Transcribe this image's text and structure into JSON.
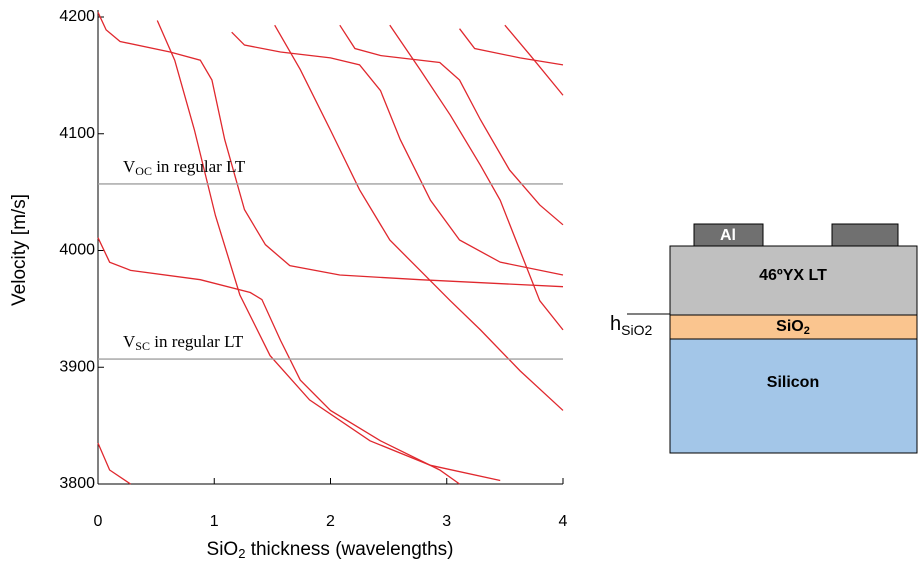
{
  "chart_data": {
    "type": "line",
    "xlabel": {
      "main": "SiO",
      "sub": "2",
      "rest": " thickness (wavelengths)"
    },
    "ylabel": "Velocity [m/s]",
    "xlim": [
      0,
      4
    ],
    "ylim": [
      3800,
      4206
    ],
    "xticks": [
      0,
      1,
      2,
      3,
      4
    ],
    "yticks": [
      3800,
      3900,
      4000,
      4100,
      4200
    ],
    "series": [
      {
        "color": "#e0282e",
        "x": [
          0,
          0.07,
          0.19,
          0.62,
          0.88,
          0.98,
          1.09,
          1.26,
          1.44,
          1.65,
          2.08,
          2.77,
          4
        ],
        "values": [
          4204,
          4189,
          4179,
          4170,
          4163,
          4146,
          4095,
          4035,
          4005,
          3987,
          3979,
          3975,
          3969
        ]
      },
      {
        "color": "#e0282e",
        "x": [
          0.51,
          0.66,
          0.83,
          1.01,
          1.22,
          1.48,
          1.82,
          2.34,
          2.86,
          3.46
        ],
        "values": [
          4197,
          4163,
          4103,
          4030,
          3962,
          3910,
          3872,
          3837,
          3816,
          3803
        ]
      },
      {
        "color": "#e0282e",
        "x": [
          0,
          0.1,
          0.28,
          0.88,
          1.31,
          1.41,
          1.57,
          1.74,
          2.0,
          2.43,
          2.94,
          3.11
        ],
        "values": [
          4011,
          3990,
          3983,
          3975,
          3964,
          3958,
          3923,
          3889,
          3863,
          3837,
          3812,
          3800
        ]
      },
      {
        "color": "#e0282e",
        "x": [
          1.15,
          1.26,
          1.57,
          2.0,
          2.25,
          2.43,
          2.6,
          2.86,
          3.11,
          3.46,
          4
        ],
        "values": [
          4187,
          4176,
          4170,
          4165,
          4159,
          4137,
          4095,
          4043,
          4009,
          3990,
          3979
        ]
      },
      {
        "color": "#e0282e",
        "x": [
          1.52,
          1.74,
          2.0,
          2.25,
          2.51,
          2.77,
          3.03,
          3.29,
          3.63,
          4
        ],
        "values": [
          4193,
          4155,
          4103,
          4052,
          4009,
          3983,
          3957,
          3932,
          3897,
          3863
        ]
      },
      {
        "color": "#e0282e",
        "x": [
          2.08,
          2.21,
          2.43,
          2.94,
          3.11,
          3.29,
          3.54,
          3.8,
          4
        ],
        "values": [
          4193,
          4173,
          4167,
          4161,
          4146,
          4112,
          4069,
          4039,
          4022
        ]
      },
      {
        "color": "#e0282e",
        "x": [
          2.51,
          2.77,
          3.03,
          3.29,
          3.46,
          3.63,
          3.8,
          4
        ],
        "values": [
          4193,
          4155,
          4116,
          4073,
          4043,
          4000,
          3957,
          3932
        ]
      },
      {
        "color": "#e0282e",
        "x": [
          3.11,
          3.24,
          3.63,
          4
        ],
        "values": [
          4190,
          4173,
          4165,
          4159
        ]
      },
      {
        "color": "#e0282e",
        "x": [
          3.5,
          3.72,
          4
        ],
        "values": [
          4193,
          4167,
          4133
        ]
      },
      {
        "color": "#e0282e",
        "x": [
          0,
          0.1,
          0.28
        ],
        "values": [
          3835,
          3812,
          3800
        ]
      },
      {
        "color": "#a0a0a0",
        "x": [
          0,
          4
        ],
        "values": [
          4057,
          4057
        ]
      },
      {
        "color": "#a0a0a0",
        "x": [
          0,
          4
        ],
        "values": [
          3907,
          3907
        ]
      }
    ],
    "annotations": [
      {
        "main": "V",
        "sub": "OC",
        "rest": " in regular LT"
      },
      {
        "main": "V",
        "sub": "SC",
        "rest": " in regular LT"
      }
    ]
  },
  "diagram": {
    "electrode": "Al",
    "piezo": "46ºYX LT",
    "oxide": {
      "main": "SiO",
      "sub": "2"
    },
    "substrate": "Silicon",
    "thickness": {
      "main": "h",
      "sub": "SiO2"
    }
  }
}
